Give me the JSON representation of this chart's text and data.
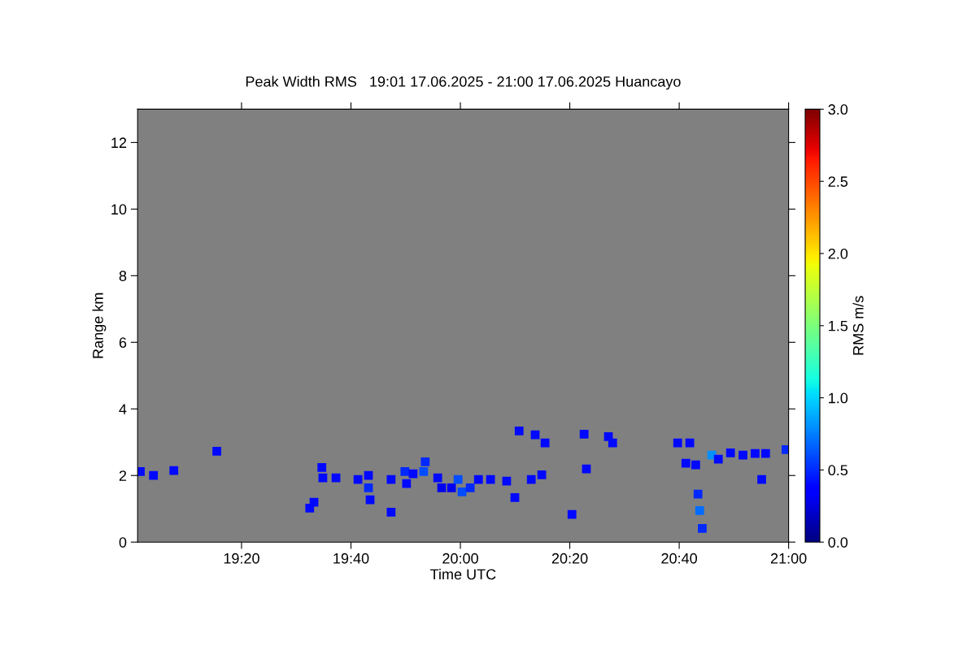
{
  "chart_data": {
    "type": "scatter",
    "title": "Peak Width RMS   19:01 17.06.2025 - 21:00 17.06.2025 Huancayo",
    "xlabel": "Time UTC",
    "ylabel": "Range km",
    "clabel": "RMS m/s",
    "x": [
      19.025,
      19.065,
      19.127,
      19.258,
      19.541,
      19.554,
      19.578,
      19.581,
      19.621,
      19.688,
      19.72,
      19.72,
      19.725,
      19.789,
      19.789,
      19.831,
      19.836,
      19.856,
      19.888,
      19.893,
      19.931,
      19.943,
      19.973,
      19.993,
      20.005,
      20.03,
      20.055,
      20.092,
      20.141,
      20.166,
      20.216,
      20.248,
      20.179,
      20.228,
      20.258,
      20.34,
      20.384,
      20.377,
      20.451,
      20.464,
      20.662,
      20.699,
      20.687,
      20.717,
      20.724,
      20.729,
      20.737,
      20.766,
      20.786,
      20.823,
      20.861,
      20.898,
      20.93,
      20.918,
      20.992
    ],
    "values": [
      2.12,
      2.0,
      2.15,
      2.73,
      1.02,
      1.2,
      2.24,
      1.93,
      1.93,
      1.88,
      2.0,
      1.63,
      1.27,
      1.88,
      0.9,
      2.12,
      1.76,
      2.05,
      2.12,
      2.41,
      1.93,
      1.63,
      1.63,
      1.88,
      1.51,
      1.63,
      1.88,
      1.88,
      1.83,
      1.34,
      1.88,
      2.02,
      3.34,
      3.22,
      2.98,
      0.83,
      2.2,
      3.24,
      3.17,
      2.98,
      2.98,
      2.98,
      2.37,
      2.32,
      1.44,
      0.95,
      0.41,
      2.61,
      2.49,
      2.68,
      2.61,
      2.66,
      2.66,
      1.88,
      2.78
    ],
    "cvalues": [
      0.4,
      0.4,
      0.4,
      0.4,
      0.4,
      0.4,
      0.4,
      0.4,
      0.4,
      0.4,
      0.4,
      0.5,
      0.4,
      0.4,
      0.4,
      0.5,
      0.4,
      0.4,
      0.6,
      0.5,
      0.4,
      0.3,
      0.3,
      0.6,
      0.6,
      0.5,
      0.4,
      0.4,
      0.4,
      0.4,
      0.4,
      0.4,
      0.4,
      0.4,
      0.4,
      0.4,
      0.4,
      0.4,
      0.4,
      0.4,
      0.4,
      0.4,
      0.4,
      0.4,
      0.5,
      0.7,
      0.5,
      0.8,
      0.4,
      0.4,
      0.4,
      0.4,
      0.4,
      0.4,
      0.5
    ],
    "marker": "square",
    "grid": false,
    "legend": false,
    "xlim": [
      19.0167,
      21.0
    ],
    "xticks": [
      {
        "value": 19.3333,
        "label": "19:20"
      },
      {
        "value": 19.6667,
        "label": "19:40"
      },
      {
        "value": 20.0,
        "label": "20:00"
      },
      {
        "value": 20.3333,
        "label": "20:20"
      },
      {
        "value": 20.6667,
        "label": "20:40"
      },
      {
        "value": 21.0,
        "label": "21:00"
      }
    ],
    "ylim": [
      0,
      13
    ],
    "yticks": [
      0,
      2,
      4,
      6,
      8,
      10,
      12
    ],
    "clim": [
      0,
      3
    ],
    "cticks": [
      {
        "value": 0,
        "label": "0.0"
      },
      {
        "value": 0.5,
        "label": "0.5"
      },
      {
        "value": 1,
        "label": "1.0"
      },
      {
        "value": 1.5,
        "label": "1.5"
      },
      {
        "value": 2,
        "label": "2.0"
      },
      {
        "value": 2.5,
        "label": "2.5"
      },
      {
        "value": 3,
        "label": "3.0"
      }
    ]
  }
}
